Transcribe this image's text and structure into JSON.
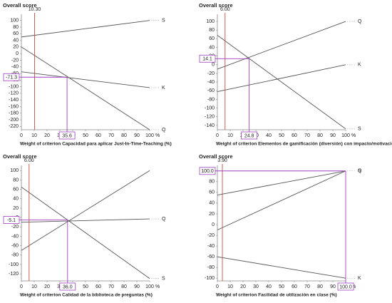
{
  "chart_data": [
    {
      "type": "line",
      "title": "Overall score",
      "xlabel": "Weight of criterion Capacidad para aplicar Just-In-Time-Teaching (%)",
      "x": [
        0,
        100
      ],
      "xlim": [
        0,
        100
      ],
      "xticks": [
        0,
        10,
        20,
        30,
        40,
        50,
        60,
        70,
        80,
        90,
        100
      ],
      "x_unit": "%",
      "ylim": [
        -230,
        110
      ],
      "yticks": [
        100,
        80,
        60,
        40,
        20,
        0,
        -20,
        -40,
        -60,
        -80,
        -100,
        -120,
        -140,
        -160,
        -180,
        -200,
        -220
      ],
      "series": [
        {
          "name": "S",
          "color": "#555555",
          "values": [
            50,
            100
          ]
        },
        {
          "name": "K",
          "color": "#555555",
          "values": [
            -55,
            -103
          ]
        },
        {
          "name": "Q",
          "color": "#555555",
          "values": [
            20,
            -230
          ]
        }
      ],
      "current_weight": {
        "value": 10.3,
        "label": "10.30",
        "color": "#d04a3a"
      },
      "crossing": {
        "x": 35.6,
        "x_label": "35.6",
        "y": -71.3,
        "y_label": "-71.3",
        "color": "#a040c0"
      }
    },
    {
      "type": "line",
      "title": "Overall score",
      "xlabel": "Weight of criterion Elementos de gamificación (diversión) con impacto/motivación en el alumnado (%)",
      "x": [
        0,
        100
      ],
      "xlim": [
        0,
        100
      ],
      "xticks": [
        0,
        10,
        20,
        30,
        40,
        50,
        60,
        70,
        80,
        90,
        100
      ],
      "x_unit": "%",
      "ylim": [
        -150,
        110
      ],
      "yticks": [
        100,
        80,
        60,
        40,
        20,
        0,
        -20,
        -40,
        -60,
        -80,
        -100,
        -120,
        -140
      ],
      "series": [
        {
          "name": "Q",
          "color": "#555555",
          "values": [
            -10,
            100
          ]
        },
        {
          "name": "K",
          "color": "#555555",
          "values": [
            -62,
            0
          ]
        },
        {
          "name": "S",
          "color": "#555555",
          "values": [
            68,
            -148
          ]
        }
      ],
      "current_weight": {
        "value": 6,
        "label": "6.00",
        "color": "#d04a3a"
      },
      "crossing": {
        "x": 24.8,
        "x_label": "24.8",
        "y": 14.1,
        "y_label": "14.1",
        "color": "#a040c0"
      }
    },
    {
      "type": "line",
      "title": "Overall score",
      "xlabel": "Weight of criterion Calidad de la biblioteca de preguntas (%)",
      "x": [
        0,
        100
      ],
      "xlim": [
        0,
        100
      ],
      "xticks": [
        0,
        10,
        20,
        30,
        40,
        50,
        60,
        70,
        80,
        90,
        100
      ],
      "x_unit": "%",
      "ylim": [
        -135,
        105
      ],
      "yticks": [
        100,
        80,
        60,
        40,
        20,
        0,
        -20,
        -40,
        -60,
        -80,
        -100,
        -120
      ],
      "series": [
        {
          "name": "Q",
          "color": "#555555",
          "values": [
            -10,
            -3
          ]
        },
        {
          "name": "S",
          "color": "#555555",
          "values": [
            65,
            -130
          ]
        },
        {
          "color": "#555555",
          "values": [
            -70,
            100
          ]
        }
      ],
      "current_weight": {
        "value": 6,
        "label": "6.00",
        "color": "#d04a3a"
      },
      "crossing": {
        "x": 36,
        "x_label": "36.0",
        "y": -5.1,
        "y_label": "-5.1",
        "color": "#a040c0"
      }
    },
    {
      "type": "line",
      "title": "Overall score",
      "xlabel": "Weight of criterion Facilidad de utilización en clase (%)",
      "x": [
        0,
        100
      ],
      "xlim": [
        0,
        100
      ],
      "xticks": [
        0,
        10,
        20,
        30,
        40,
        50,
        60,
        70,
        80,
        90,
        100
      ],
      "x_unit": "%",
      "ylim": [
        -105,
        105
      ],
      "yticks": [
        100,
        80,
        60,
        40,
        20,
        0,
        -20,
        -40,
        -60,
        -80,
        -100
      ],
      "series": [
        {
          "name": "S",
          "color": "#555555",
          "values": [
            55,
            100
          ]
        },
        {
          "name": "Q",
          "color": "#555555",
          "values": [
            -10,
            100
          ]
        },
        {
          "name": "K",
          "color": "#555555",
          "values": [
            -60,
            -100
          ]
        }
      ],
      "current_weight": {
        "value": 3.9,
        "label": "3.90",
        "color": "#d04a3a"
      },
      "crossing": {
        "x": 100,
        "x_label": "100.0",
        "y": 100,
        "y_label": "100.0",
        "color": "#a040c0"
      }
    }
  ]
}
